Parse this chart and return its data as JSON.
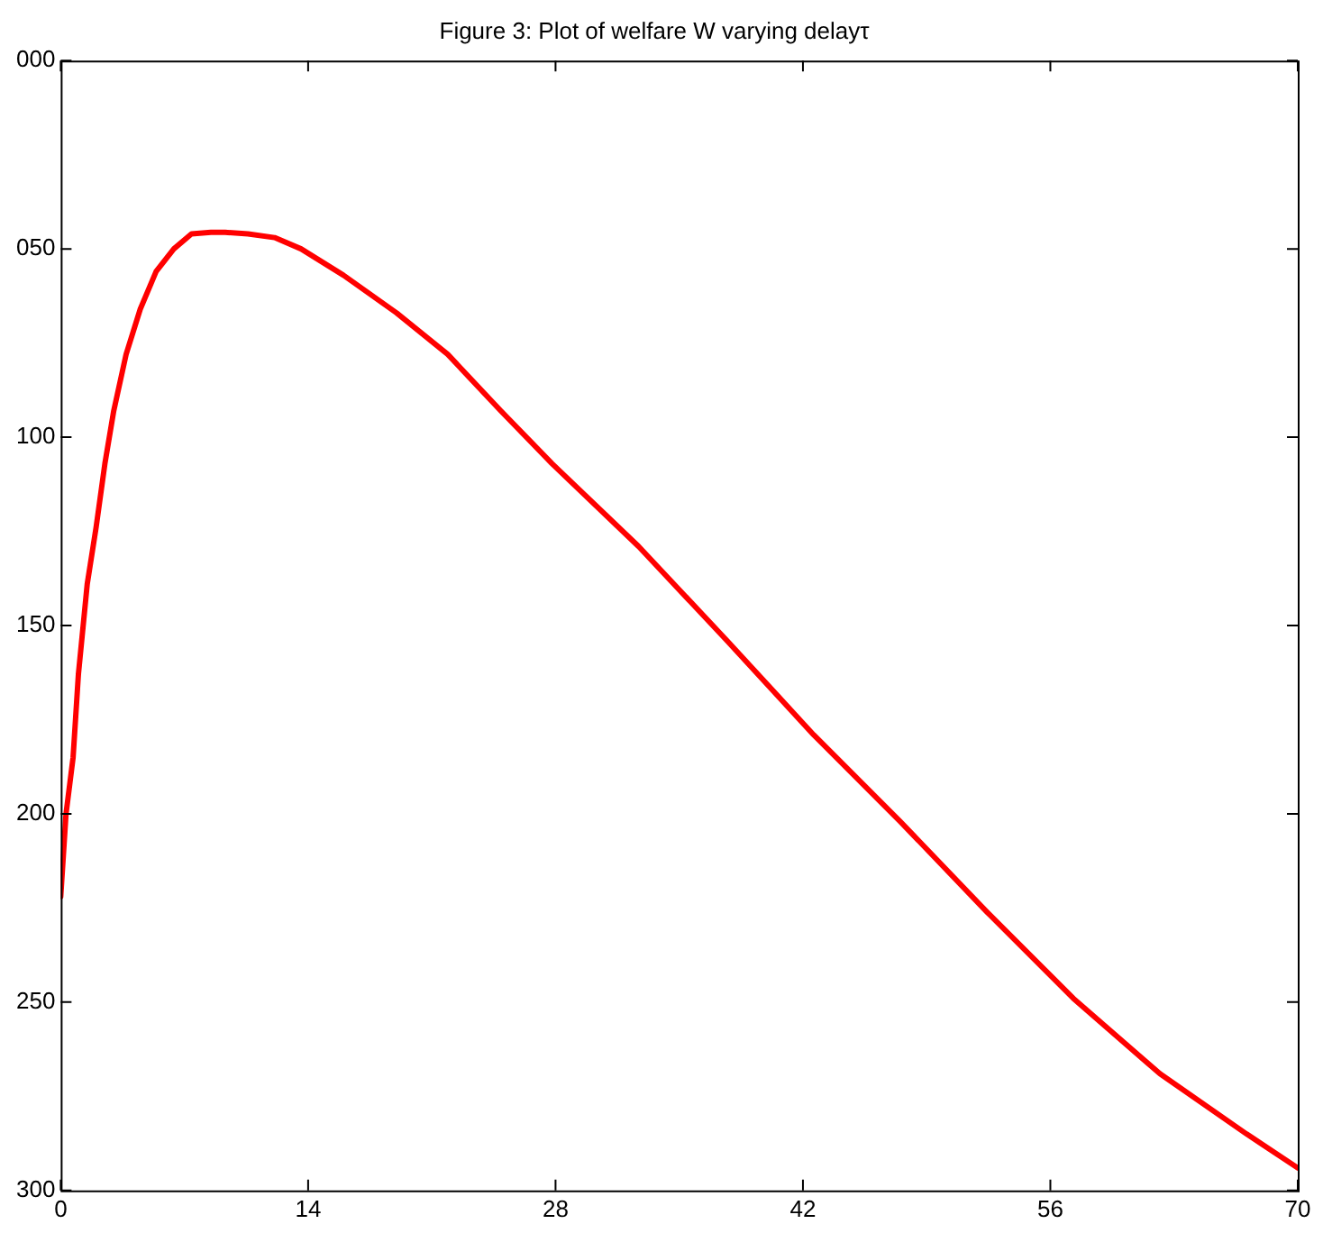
{
  "chart_data": {
    "type": "line",
    "title": "Figure 3: Plot of welfare W varying delayτ",
    "x": [
      0,
      0.3,
      0.7,
      1.0,
      1.5,
      2.0,
      2.5,
      3.0,
      3.7,
      4.5,
      5.4,
      6.4,
      7.4,
      8.5,
      9.3,
      10.6,
      12.1,
      13.6,
      16,
      19,
      21.9,
      24.9,
      27.8,
      32.7,
      37.7,
      42.6,
      47.5,
      52.4,
      57.3,
      62.2,
      67.1,
      70
    ],
    "series": [
      {
        "color": "#ff0000",
        "values": [
          -222,
          -200,
          -185,
          -163,
          -139,
          -124,
          -107,
          -93,
          -78,
          -66,
          -56,
          -50,
          -46,
          -45.6,
          -45.6,
          -46,
          -47,
          -50,
          -57,
          -67,
          -78,
          -93,
          -107,
          -129,
          -154,
          -179,
          -202,
          -226,
          -249,
          -269,
          -285,
          -294
        ]
      }
    ],
    "xlim": [
      0,
      70
    ],
    "xticks": [
      0,
      14,
      28,
      42,
      56,
      70
    ],
    "ylim": [
      -300,
      0
    ],
    "yticks": [
      {
        "value": -300,
        "label": "300"
      },
      {
        "value": -250,
        "label": "250"
      },
      {
        "value": -200,
        "label": "200"
      },
      {
        "value": -150,
        "label": "150"
      },
      {
        "value": -100,
        "label": "100"
      },
      {
        "value": -50,
        "label": "050"
      },
      {
        "value": 0,
        "label": "000"
      }
    ],
    "grid": false,
    "legend": false,
    "marker": "none",
    "line_style": "solid"
  }
}
